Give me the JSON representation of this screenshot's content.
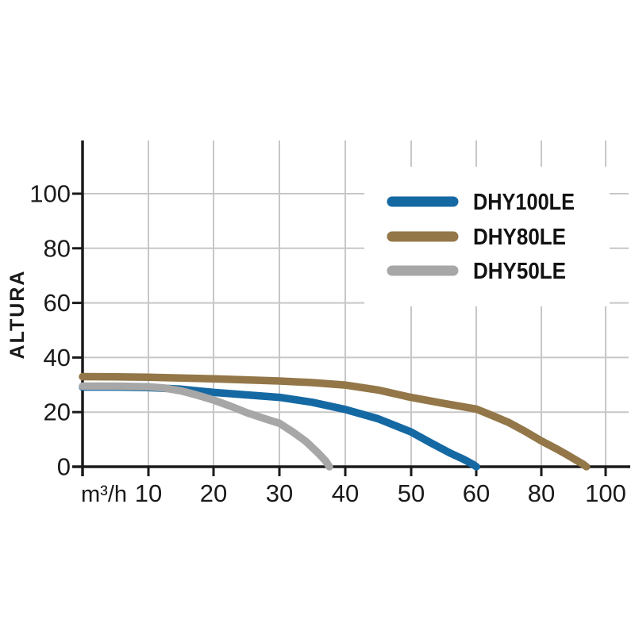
{
  "axes": {
    "y_label": "ALTURA",
    "x_unit_label": "m³/h",
    "x_ticks": [
      "10",
      "20",
      "30",
      "40",
      "50",
      "60",
      "80",
      "100"
    ],
    "y_ticks": [
      "0",
      "20",
      "40",
      "60",
      "80",
      "100"
    ]
  },
  "legend": {
    "items": [
      {
        "label": "DHY100LE",
        "color": "#1569a3"
      },
      {
        "label": "DHY80LE",
        "color": "#937748"
      },
      {
        "label": "DHY50LE",
        "color": "#a7a7a7"
      }
    ]
  },
  "colors": {
    "grid": "#c7c7c7",
    "axis": "#1a1a1a",
    "background": "#ffffff"
  },
  "chart_data": {
    "type": "line",
    "title": "",
    "xlabel": "m³/h",
    "ylabel": "ALTURA",
    "x_tick_values": [
      10,
      20,
      30,
      40,
      50,
      60,
      80,
      100
    ],
    "y_tick_values": [
      0,
      20,
      40,
      60,
      80,
      100
    ],
    "ylim": [
      0,
      120
    ],
    "xlim": [
      0,
      103
    ],
    "x_scale_note": "x axis compressed above 60: ticks 10-60 step 10, then 80 and 100 at equal spacing",
    "grid": true,
    "legend_position": "upper-right",
    "series": [
      {
        "name": "DHY100LE",
        "color": "#1569a3",
        "max_flow": 60,
        "shutoff_head": 29,
        "points": [
          [
            0,
            29.2
          ],
          [
            5,
            29.2
          ],
          [
            10,
            29.0
          ],
          [
            15,
            28.4
          ],
          [
            20,
            27.2
          ],
          [
            25,
            26.3
          ],
          [
            30,
            25.4
          ],
          [
            35,
            23.6
          ],
          [
            40,
            21.0
          ],
          [
            45,
            17.6
          ],
          [
            50,
            12.8
          ],
          [
            53,
            8.8
          ],
          [
            56,
            5.0
          ],
          [
            58,
            2.8
          ],
          [
            59.5,
            0.8
          ],
          [
            60,
            0
          ]
        ]
      },
      {
        "name": "DHY80LE",
        "color": "#937748",
        "max_flow": 94,
        "shutoff_head": 33,
        "points": [
          [
            0,
            33
          ],
          [
            5,
            32.9
          ],
          [
            10,
            32.8
          ],
          [
            15,
            32.5
          ],
          [
            20,
            32.2
          ],
          [
            25,
            31.8
          ],
          [
            30,
            31.4
          ],
          [
            35,
            30.8
          ],
          [
            40,
            29.9
          ],
          [
            45,
            28.1
          ],
          [
            50,
            25.4
          ],
          [
            55,
            23.2
          ],
          [
            60,
            21.1
          ],
          [
            65,
            18.7
          ],
          [
            70,
            16.2
          ],
          [
            75,
            13.0
          ],
          [
            80,
            9.5
          ],
          [
            85,
            6.4
          ],
          [
            88,
            4.4
          ],
          [
            91,
            2.3
          ],
          [
            93,
            0.9
          ],
          [
            94,
            0
          ]
        ]
      },
      {
        "name": "DHY50LE",
        "color": "#a7a7a7",
        "max_flow": 37.6,
        "shutoff_head": 29.5,
        "points": [
          [
            0,
            29.5
          ],
          [
            5,
            29.5
          ],
          [
            10,
            29.3
          ],
          [
            12.5,
            28.8
          ],
          [
            15,
            27.8
          ],
          [
            17.5,
            26.2
          ],
          [
            20,
            24.4
          ],
          [
            22.5,
            22.2
          ],
          [
            25,
            19.8
          ],
          [
            27.5,
            17.8
          ],
          [
            30,
            15.9
          ],
          [
            32,
            12.8
          ],
          [
            34,
            9.3
          ],
          [
            35.8,
            5.2
          ],
          [
            37,
            2.2
          ],
          [
            37.6,
            0
          ]
        ]
      }
    ]
  }
}
